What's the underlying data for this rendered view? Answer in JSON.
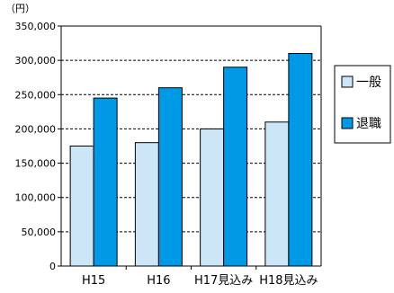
{
  "chart_data": {
    "type": "bar",
    "unit_label": "（円）",
    "categories": [
      "H15",
      "H16",
      "H17見込み",
      "H18見込み"
    ],
    "series": [
      {
        "name": "一般",
        "values": [
          175000,
          180000,
          200000,
          210000
        ],
        "color": "#cce6f8"
      },
      {
        "name": "退職",
        "values": [
          245000,
          260000,
          290000,
          310000
        ],
        "color": "#0099e6"
      }
    ],
    "ylim": [
      0,
      350000
    ],
    "yticks": [
      "0",
      "50,000",
      "100,000",
      "150,000",
      "200,000",
      "250,000",
      "300,000",
      "350,000"
    ],
    "grid": true,
    "legend_position": "right"
  }
}
